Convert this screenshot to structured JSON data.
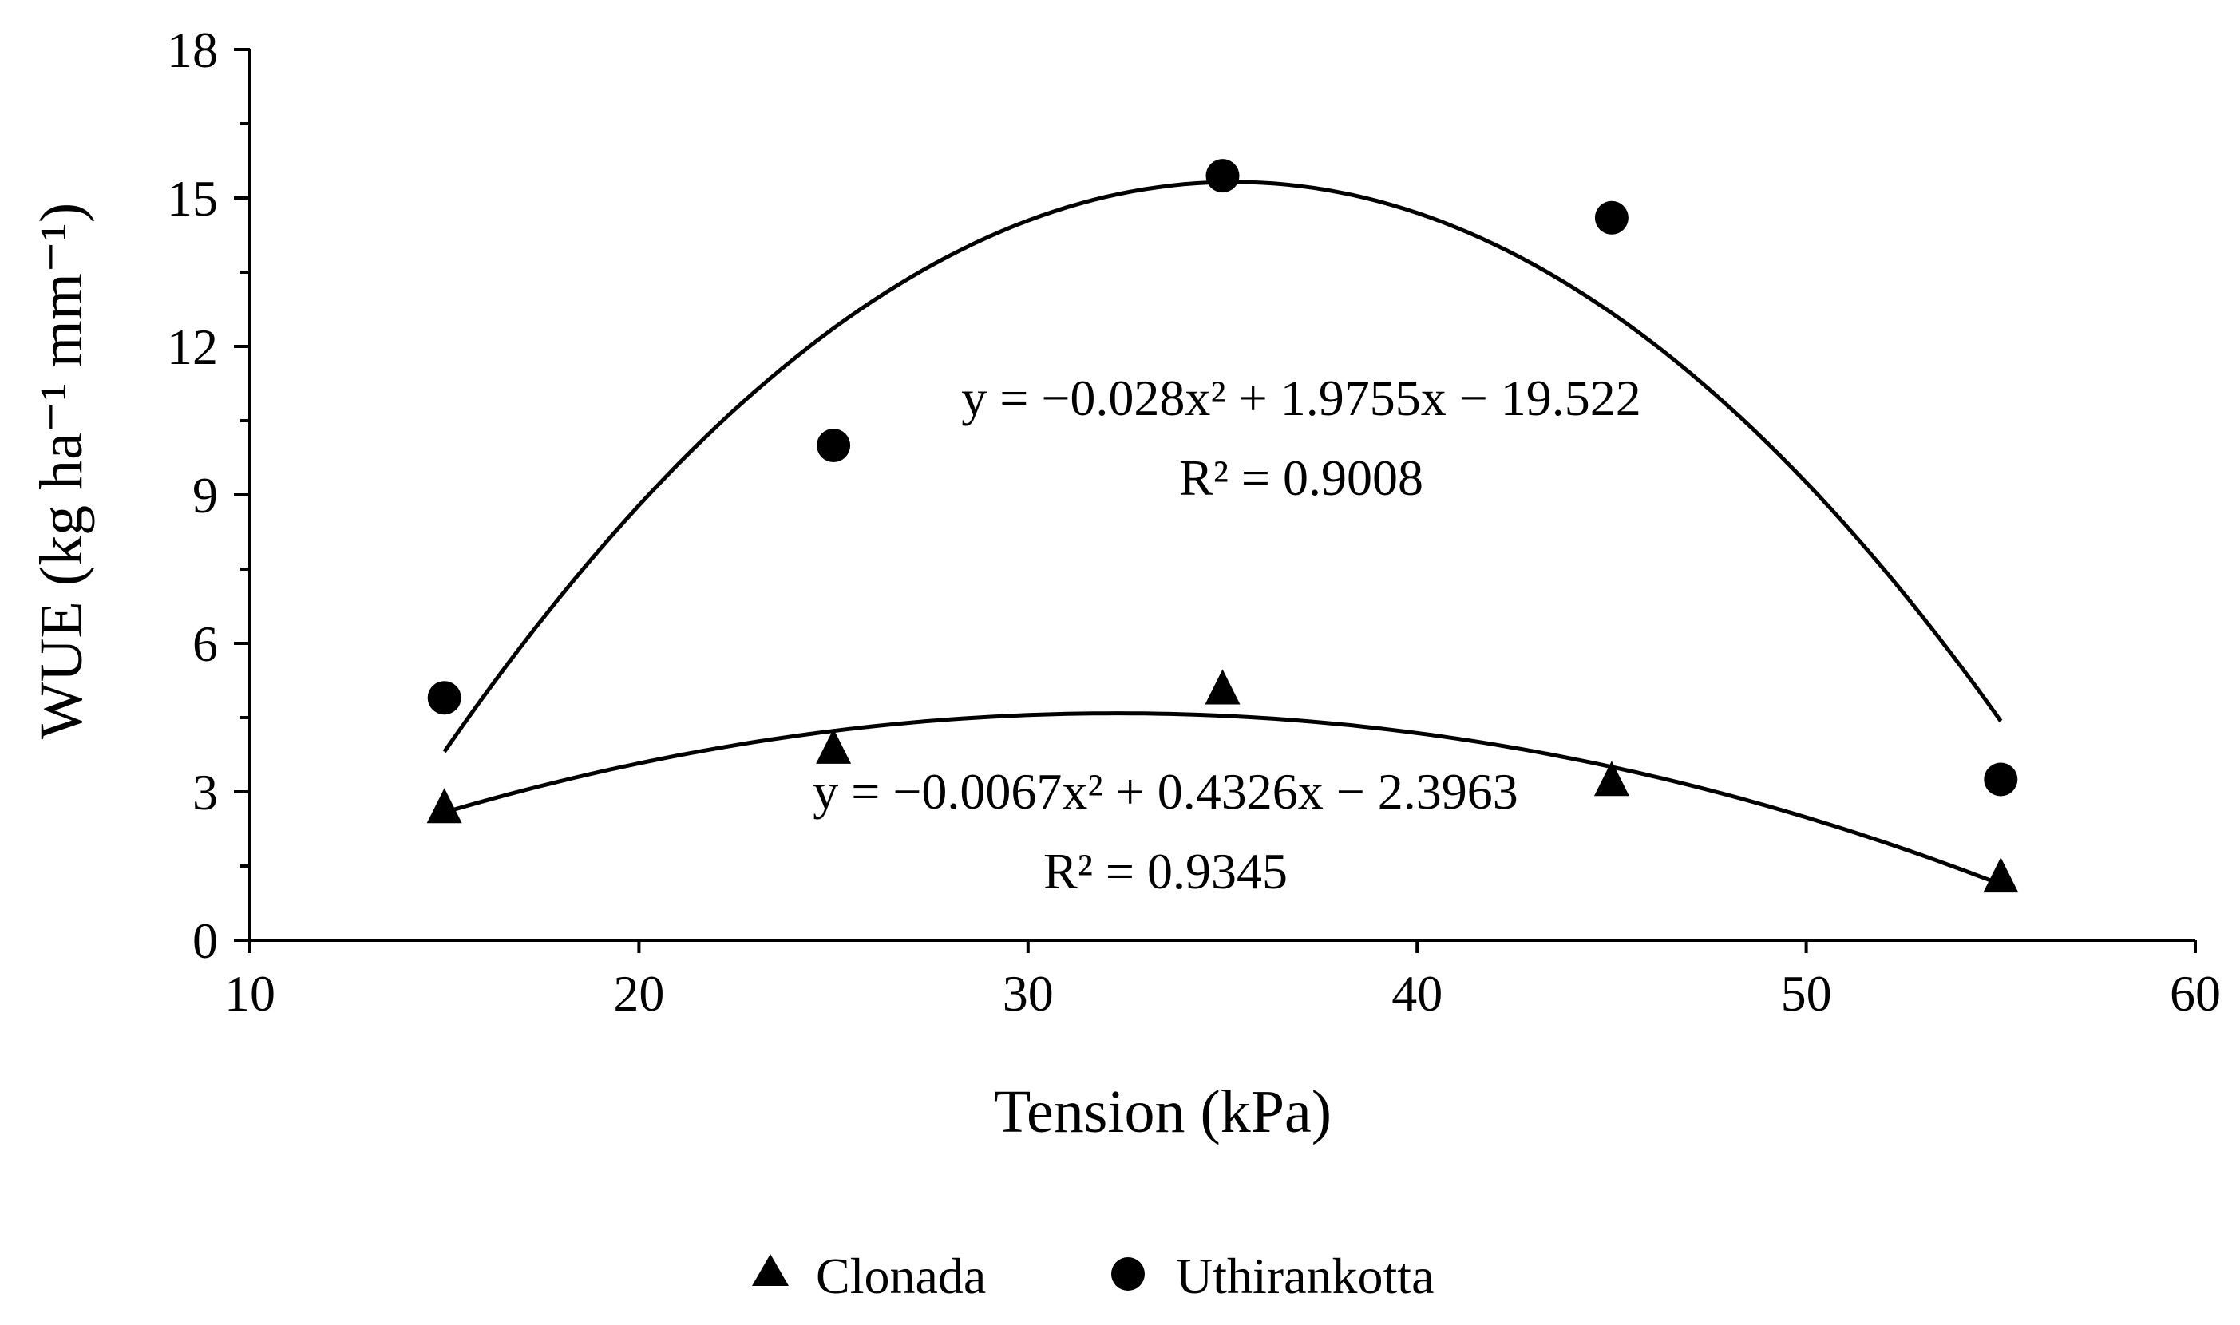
{
  "chart_data": {
    "type": "scatter",
    "xlabel": "Tension (kPa)",
    "ylabel": "WUE  (kg ha⁻¹ mm⁻¹)",
    "xlim": [
      10,
      60
    ],
    "ylim": [
      0,
      18
    ],
    "x_ticks": [
      "10",
      "20",
      "30",
      "40",
      "50",
      "60"
    ],
    "y_ticks": [
      "0",
      "3",
      "6",
      "9",
      "12",
      "15",
      "18"
    ],
    "grid": false,
    "legend_position": "bottom-center",
    "series": [
      {
        "name": "Clonada",
        "marker": "triangle",
        "color": "#000000",
        "x": [
          15,
          25,
          35,
          45,
          55
        ],
        "y": [
          2.65,
          3.85,
          5.05,
          3.2,
          1.25
        ],
        "trendline": {
          "type": "polynomial",
          "coefficients": [
            -0.0067,
            0.4326,
            -2.3963
          ],
          "equation": "y = −0.0067x² + 0.4326x − 2.3963",
          "r2": "R² = 0.9345"
        }
      },
      {
        "name": "Uthirankotta",
        "marker": "circle",
        "color": "#000000",
        "x": [
          15,
          25,
          35,
          45,
          55
        ],
        "y": [
          4.9,
          10.0,
          15.45,
          14.6,
          3.25
        ],
        "trendline": {
          "type": "polynomial",
          "coefficients": [
            -0.028,
            1.9755,
            -19.522
          ],
          "equation": "y = −0.028x² + 1.9755x − 19.522",
          "r2": "R² = 0.9008"
        }
      }
    ]
  }
}
